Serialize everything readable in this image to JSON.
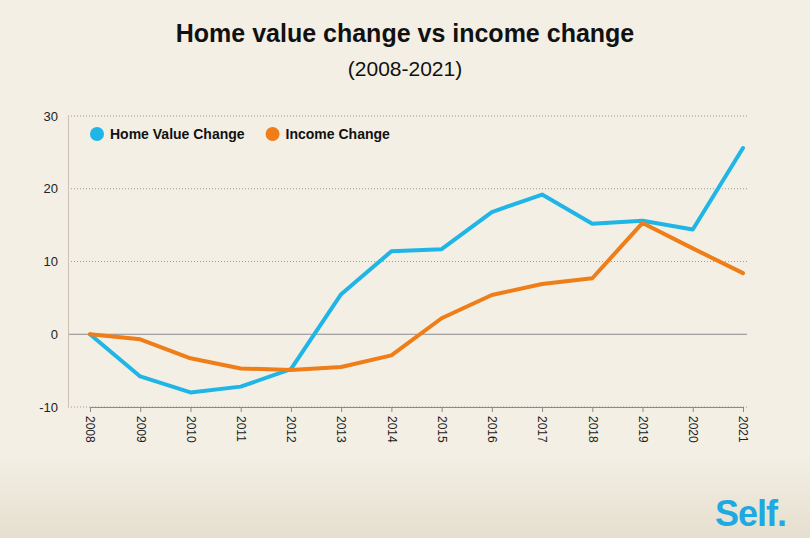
{
  "chart_data": {
    "type": "line",
    "title": "Home value change vs income change",
    "subtitle": "(2008-2021)",
    "categories": [
      "2008",
      "2009",
      "2010",
      "2011",
      "2012",
      "2013",
      "2014",
      "2015",
      "2016",
      "2017",
      "2018",
      "2019",
      "2020",
      "2021"
    ],
    "series": [
      {
        "name": "Home Value Change",
        "color": "#1fb5e6",
        "values": [
          0,
          -5.8,
          -8.0,
          -7.2,
          -4.8,
          5.5,
          11.4,
          11.7,
          16.8,
          19.2,
          15.2,
          15.6,
          14.4,
          25.6
        ]
      },
      {
        "name": "Income Change",
        "color": "#ef7d18",
        "values": [
          0,
          -0.7,
          -3.3,
          -4.7,
          -4.9,
          -4.5,
          -2.9,
          2.2,
          5.4,
          6.9,
          7.7,
          15.3,
          11.8,
          8.4
        ]
      }
    ],
    "ylim": [
      -10,
      30
    ],
    "yticks": [
      -10,
      0,
      10,
      20,
      30
    ],
    "grid": true,
    "legend": "upper left",
    "annotations": [
      "Self."
    ]
  }
}
